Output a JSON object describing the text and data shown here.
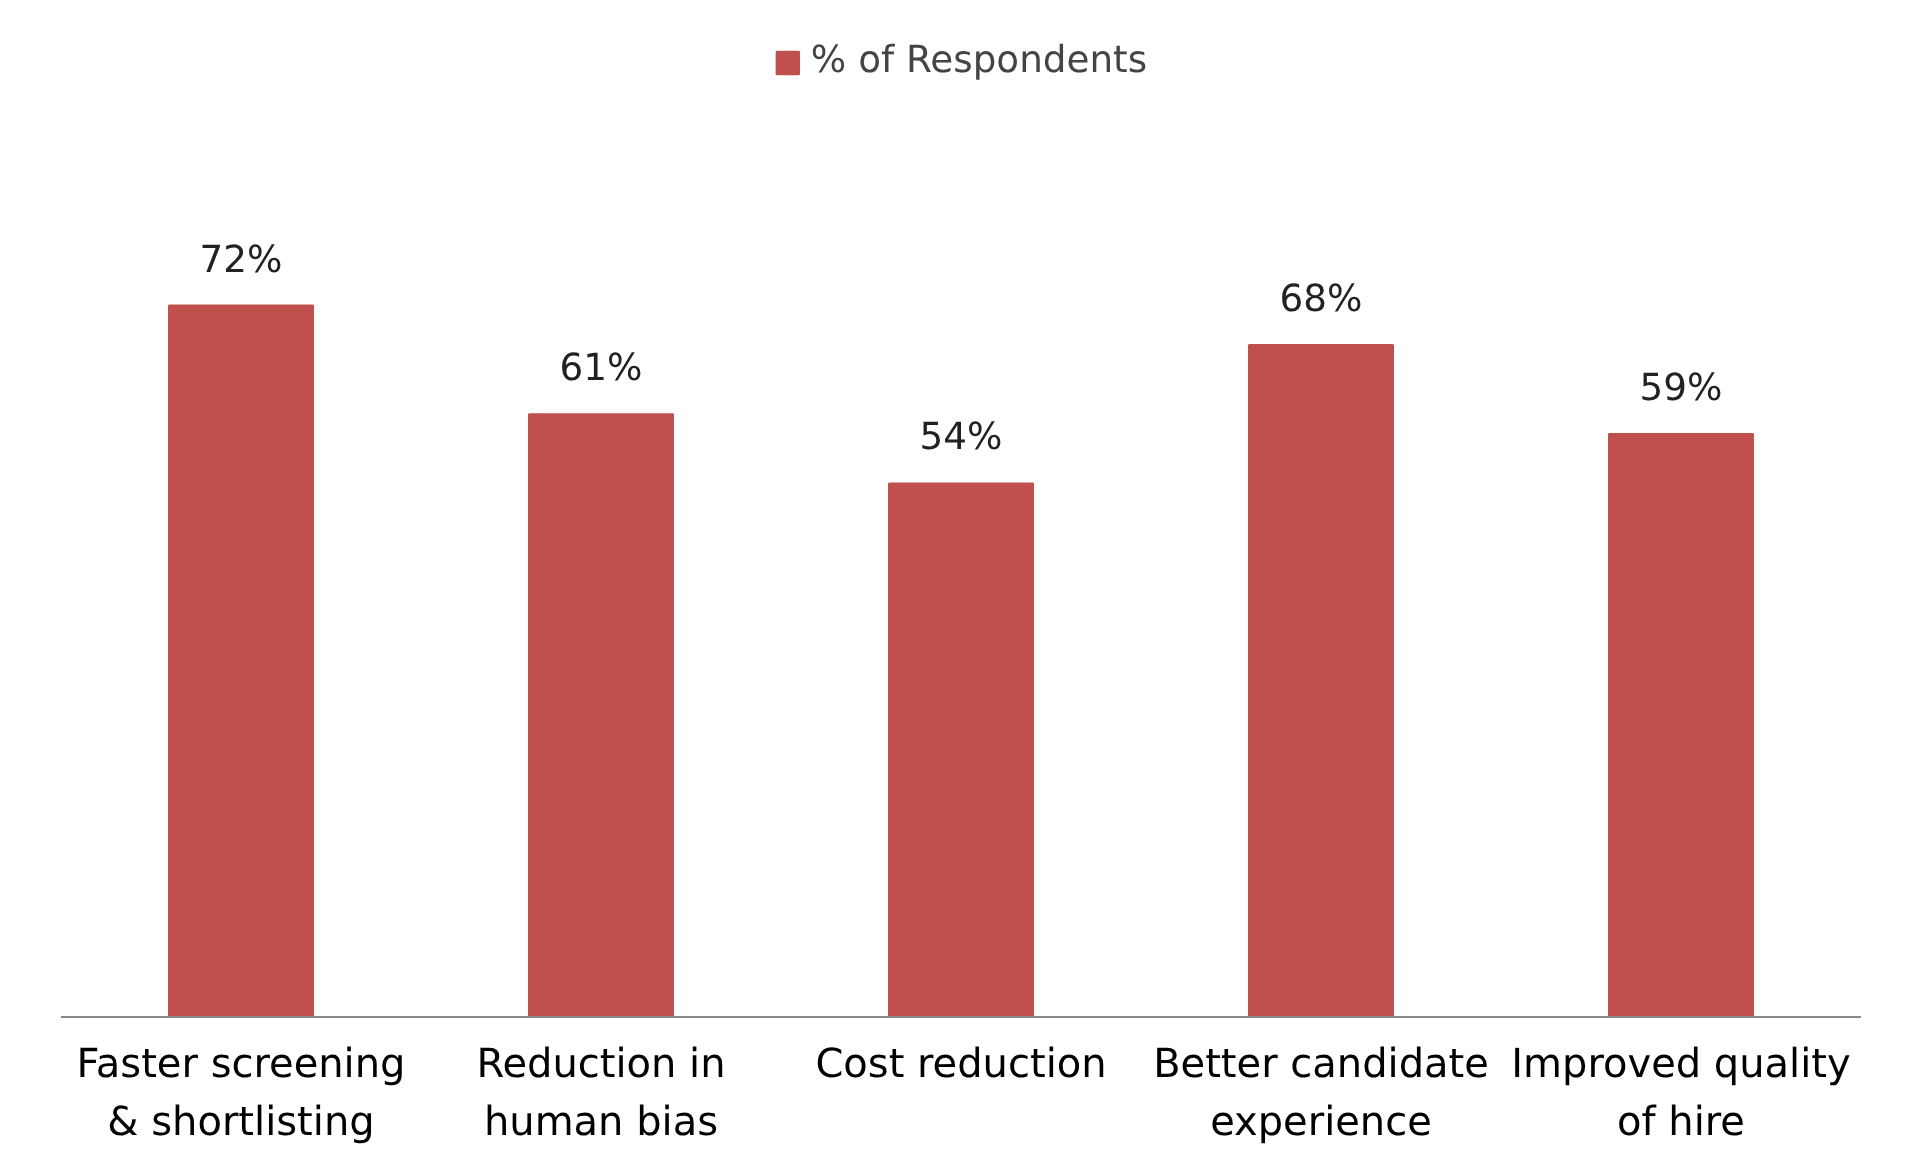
{
  "chart_data": {
    "type": "bar",
    "categories": [
      "Faster screening & shortlisting",
      "Reduction in human bias",
      "Cost reduction",
      "Better candidate experience",
      "Improved quality of hire"
    ],
    "series": [
      {
        "name": "% of Respondents",
        "color": "#c0504d",
        "values": [
          72,
          61,
          54,
          68,
          59
        ],
        "value_labels": [
          "72%",
          "61%",
          "54%",
          "68%",
          "59%"
        ]
      }
    ],
    "legend": "top",
    "grid": false,
    "tick_labels": "x"
  }
}
